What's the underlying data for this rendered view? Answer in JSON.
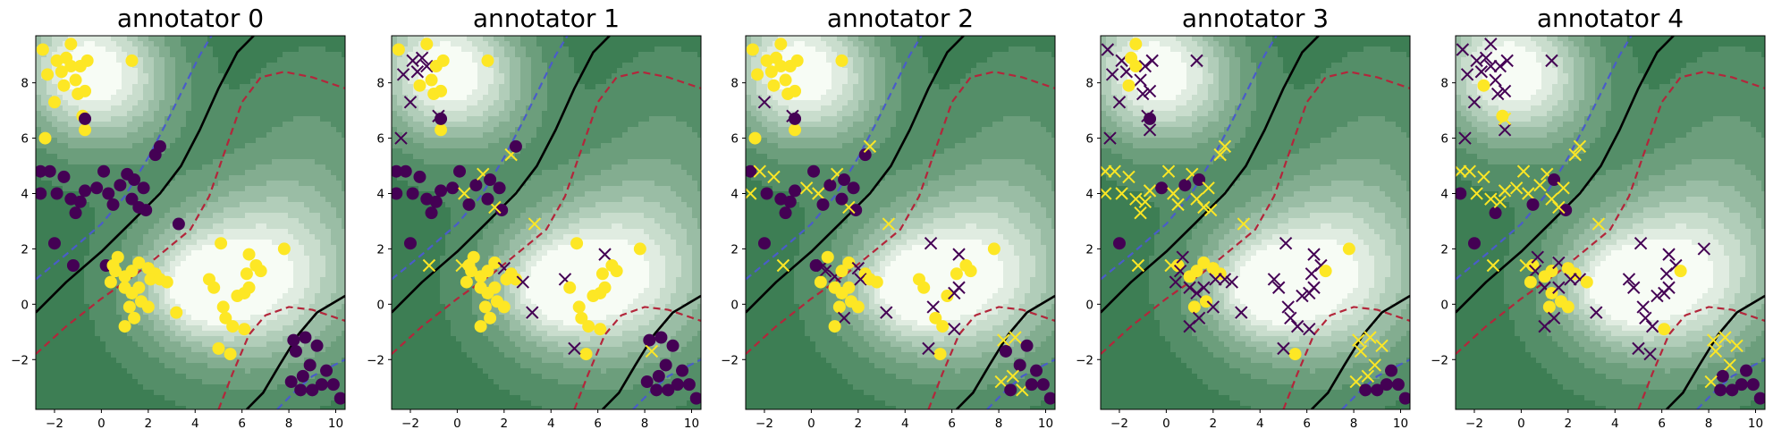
{
  "chart_data": {
    "type": "scatter",
    "xlim": [
      -2.8,
      10.4
    ],
    "ylim": [
      -3.8,
      9.7
    ],
    "x_ticks": [
      -2,
      0,
      2,
      4,
      6,
      8,
      10
    ],
    "y_ticks": [
      -2,
      0,
      2,
      4,
      6,
      8
    ],
    "colors": {
      "class0": "#440154",
      "class1": "#fde725",
      "contour_light": "#f7fcf5",
      "contour_dark": "#3d7e54",
      "boundary": "#000000",
      "lower_bound": "#b3263b",
      "upper_bound": "#4a5cc9"
    },
    "points": [
      [
        -2.5,
        9.2,
        1
      ],
      [
        -2.3,
        8.3,
        1
      ],
      [
        -1.9,
        8.8,
        1
      ],
      [
        -1.7,
        8.4,
        1
      ],
      [
        -1.5,
        8.9,
        1
      ],
      [
        -1.3,
        8.6,
        1
      ],
      [
        -1.1,
        8.1,
        1
      ],
      [
        -1.6,
        7.9,
        1
      ],
      [
        -1.0,
        7.6,
        1
      ],
      [
        -0.7,
        7.7,
        1
      ],
      [
        -1.3,
        9.4,
        1
      ],
      [
        -0.9,
        8.6,
        1
      ],
      [
        -0.6,
        8.8,
        1
      ],
      [
        -0.8,
        6.8,
        1
      ],
      [
        -0.7,
        6.3,
        1
      ],
      [
        1.3,
        8.8,
        1
      ],
      [
        -2.4,
        6.0,
        1
      ],
      [
        -2.0,
        7.3,
        1
      ],
      [
        -2.6,
        4.8,
        0
      ],
      [
        -2.2,
        4.8,
        0
      ],
      [
        -2.6,
        4.0,
        0
      ],
      [
        -1.9,
        4.0,
        0
      ],
      [
        -1.6,
        4.6,
        0
      ],
      [
        -1.3,
        3.8,
        0
      ],
      [
        -1.1,
        3.3,
        0
      ],
      [
        -0.7,
        4.1,
        0
      ],
      [
        -0.2,
        4.2,
        0
      ],
      [
        0.1,
        4.8,
        0
      ],
      [
        0.3,
        4.0,
        0
      ],
      [
        0.5,
        3.6,
        0
      ],
      [
        0.8,
        4.3,
        0
      ],
      [
        1.1,
        4.7,
        0
      ],
      [
        1.4,
        4.5,
        0
      ],
      [
        1.8,
        4.2,
        0
      ],
      [
        1.9,
        3.4,
        0
      ],
      [
        1.6,
        3.5,
        0
      ],
      [
        2.3,
        5.4,
        0
      ],
      [
        2.5,
        5.7,
        0
      ],
      [
        -0.9,
        3.7,
        0
      ],
      [
        -2.0,
        2.2,
        0
      ],
      [
        -1.2,
        1.4,
        0
      ],
      [
        0.2,
        1.4,
        0
      ],
      [
        1.3,
        3.8,
        0
      ],
      [
        -0.7,
        6.7,
        0
      ],
      [
        3.3,
        2.9,
        0
      ],
      [
        0.5,
        1.4,
        1
      ],
      [
        0.6,
        1.2,
        1
      ],
      [
        0.7,
        1.7,
        1
      ],
      [
        1.0,
        1.0,
        1
      ],
      [
        1.3,
        1.2,
        1
      ],
      [
        1.6,
        1.5,
        1
      ],
      [
        2.0,
        1.3,
        1
      ],
      [
        2.3,
        1.1,
        1
      ],
      [
        1.0,
        0.6,
        1
      ],
      [
        1.3,
        0.4,
        1
      ],
      [
        1.6,
        0.6,
        1
      ],
      [
        2.1,
        0.9,
        1
      ],
      [
        1.7,
        0.1,
        1
      ],
      [
        1.2,
        -0.1,
        1
      ],
      [
        1.4,
        -0.5,
        1
      ],
      [
        2.5,
        0.9,
        1
      ],
      [
        0.4,
        0.8,
        1
      ],
      [
        2.8,
        0.8,
        1
      ],
      [
        3.2,
        -0.3,
        1
      ],
      [
        1.0,
        -0.8,
        1
      ],
      [
        2.0,
        -0.1,
        1
      ],
      [
        5.1,
        2.2,
        1
      ],
      [
        6.3,
        1.8,
        1
      ],
      [
        4.6,
        0.9,
        1
      ],
      [
        4.8,
        0.6,
        1
      ],
      [
        5.2,
        -0.1,
        1
      ],
      [
        5.3,
        -0.5,
        1
      ],
      [
        5.6,
        -0.8,
        1
      ],
      [
        5.8,
        0.3,
        1
      ],
      [
        6.1,
        0.4,
        1
      ],
      [
        6.6,
        1.4,
        1
      ],
      [
        6.8,
        1.2,
        1
      ],
      [
        6.2,
        1.1,
        1
      ],
      [
        5.5,
        -1.8,
        1
      ],
      [
        5.0,
        -1.6,
        1
      ],
      [
        6.1,
        -0.9,
        1
      ],
      [
        7.8,
        2.0,
        1
      ],
      [
        6.3,
        0.6,
        1
      ],
      [
        8.2,
        -1.3,
        0
      ],
      [
        8.3,
        -1.7,
        0
      ],
      [
        8.7,
        -1.2,
        0
      ],
      [
        9.2,
        -1.5,
        0
      ],
      [
        8.9,
        -2.2,
        0
      ],
      [
        8.6,
        -2.6,
        0
      ],
      [
        8.1,
        -2.8,
        0
      ],
      [
        9.0,
        -3.1,
        0
      ],
      [
        9.6,
        -2.4,
        0
      ],
      [
        9.9,
        -2.9,
        0
      ],
      [
        10.2,
        -3.4,
        0
      ],
      [
        8.5,
        -3.1,
        0
      ],
      [
        9.4,
        -2.9,
        0
      ]
    ],
    "panels": [
      {
        "title": "annotator 0",
        "wrong": []
      },
      {
        "title": "annotator 1",
        "wrong": [
          1,
          2,
          3,
          4,
          5,
          13,
          16,
          17,
          28,
          31,
          35,
          36,
          40,
          41,
          44,
          51,
          62,
          63,
          67,
          68,
          79,
          84
        ]
      },
      {
        "title": "annotator 2",
        "wrong": [
          13,
          17,
          19,
          20,
          22,
          26,
          28,
          31,
          35,
          37,
          40,
          44,
          45,
          46,
          48,
          51,
          56,
          59,
          63,
          66,
          67,
          70,
          74,
          79,
          80,
          82,
          83,
          85,
          88,
          89,
          90
        ]
      },
      {
        "title": "annotator 3",
        "wrong": [
          0,
          1,
          2,
          3,
          6,
          8,
          9,
          11,
          12,
          13,
          14,
          15,
          16,
          17,
          18,
          19,
          20,
          21,
          22,
          23,
          24,
          25,
          27,
          28,
          29,
          31,
          33,
          34,
          35,
          36,
          37,
          38,
          40,
          41,
          42,
          44,
          46,
          47,
          53,
          54,
          55,
          56,
          59,
          60,
          61,
          62,
          63,
          64,
          65,
          66,
          67,
          68,
          69,
          70,
          71,
          72,
          73,
          74,
          75,
          77,
          79,
          80,
          82,
          83,
          84,
          85,
          86,
          87,
          88,
          89
        ]
      },
      {
        "title": "annotator 4",
        "wrong": [
          0,
          1,
          2,
          3,
          4,
          5,
          6,
          8,
          9,
          10,
          11,
          12,
          14,
          15,
          16,
          17,
          18,
          19,
          21,
          22,
          23,
          25,
          26,
          27,
          28,
          30,
          31,
          33,
          35,
          36,
          37,
          38,
          40,
          41,
          42,
          43,
          44,
          46,
          47,
          50,
          53,
          55,
          56,
          59,
          60,
          63,
          64,
          66,
          67,
          68,
          69,
          70,
          71,
          72,
          73,
          74,
          75,
          77,
          78,
          79,
          81,
          82,
          83,
          84,
          85,
          86,
          87,
          89
        ]
      }
    ]
  }
}
